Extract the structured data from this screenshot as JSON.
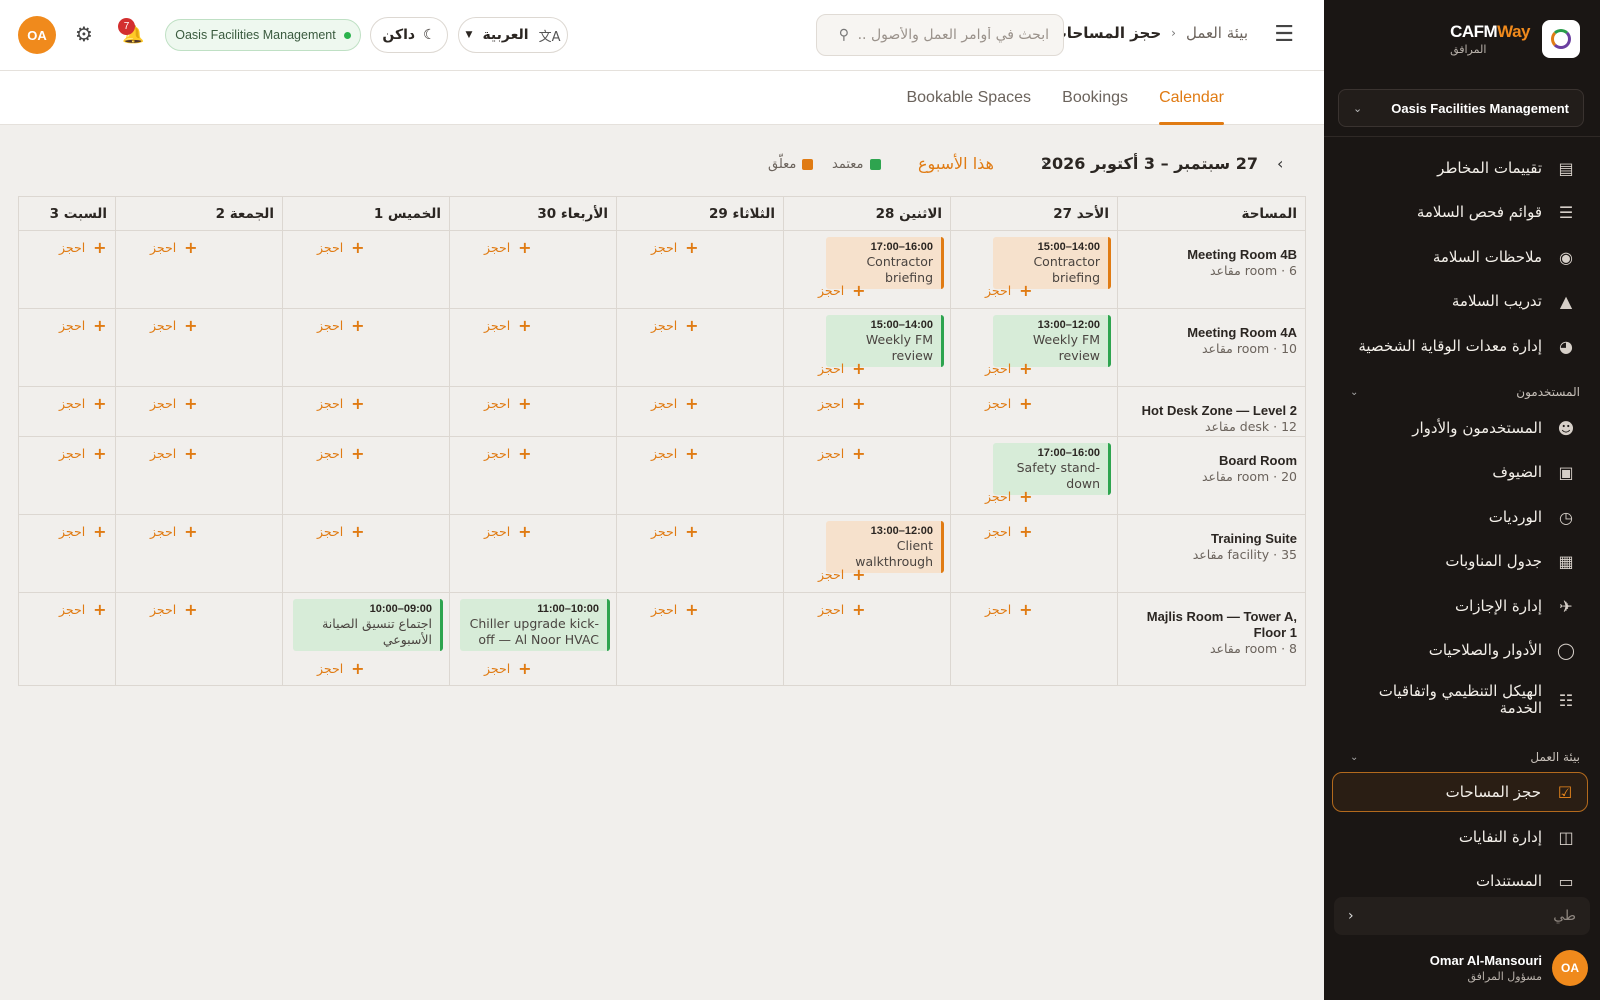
{
  "sidebar": {
    "brand": {
      "name_a": "CAFM",
      "name_b": "Way",
      "subtitle": "المرافق"
    },
    "org": {
      "label": "Oasis Facilities Management"
    },
    "items": [
      {
        "label": "تقييمات المخاطر",
        "icon": "risk-icon"
      },
      {
        "label": "قوائم فحص السلامة",
        "icon": "checklist-icon"
      },
      {
        "label": "ملاحظات السلامة",
        "icon": "eye-icon"
      },
      {
        "label": "تدريب السلامة",
        "icon": "graduation-cap-icon"
      },
      {
        "label": "إدارة معدات الوقاية الشخصية",
        "icon": "mask-icon"
      }
    ],
    "section_users": {
      "label": "المستخدمون"
    },
    "user_items": [
      {
        "label": "المستخدمون والأدوار",
        "icon": "users-icon"
      },
      {
        "label": "الضيوف",
        "icon": "guest-icon"
      },
      {
        "label": "الورديات",
        "icon": "clock-icon"
      },
      {
        "label": "جدول المناوبات",
        "icon": "calendar-icon"
      },
      {
        "label": "إدارة الإجازات",
        "icon": "plane-icon"
      },
      {
        "label": "الأدوار والصلاحيات",
        "icon": "shield-icon"
      },
      {
        "label": "الهيكل التنظيمي واتفاقيات الخدمة",
        "icon": "org-chart-icon"
      }
    ],
    "section_work": {
      "label": "بيئة العمل"
    },
    "work_items": [
      {
        "label": "حجز المساحات",
        "icon": "calendar-check-icon",
        "active": true
      },
      {
        "label": "إدارة النفايات",
        "icon": "trash-icon"
      },
      {
        "label": "المستندات",
        "icon": "folder-icon"
      }
    ],
    "collapse": {
      "label": "طي"
    },
    "user": {
      "initials": "OA",
      "name": "Omar Al-Mansouri",
      "role": "مسؤول المرافق"
    }
  },
  "header": {
    "breadcrumb_root": "بيئة العمل",
    "breadcrumb_current": "حجز المساحات",
    "search_placeholder": "ابحث في أوامر العمل والأصول ...",
    "language": "العربية",
    "theme": "داكن",
    "org_pill": "Oasis Facilities Management",
    "notifications": "7",
    "avatar": "OA"
  },
  "tabs": [
    {
      "label": "Calendar",
      "active": true
    },
    {
      "label": "Bookings",
      "active": false
    },
    {
      "label": "Bookable Spaces",
      "active": false
    }
  ],
  "toolbar": {
    "week_range": "27 سبتمبر – 3 أكتوبر 2026",
    "this_week": "هذا الأسبوع",
    "legend_approved": "معتمد",
    "legend_pending": "معلّق",
    "color_approved": "#2ea44f",
    "color_pending": "#e07b13"
  },
  "grid": {
    "columns": [
      "المساحة",
      "الأحد 27",
      "الاثنين 28",
      "الثلاثاء 29",
      "الأربعاء 30",
      "الخميس 1",
      "الجمعة 2",
      "السبت 3"
    ],
    "book_label": "احجز",
    "rows": [
      {
        "name": "Meeting Room 4B",
        "meta": "6 · room مقاعد",
        "bookings": [
          {
            "day": 0,
            "time": "14:00–15:00",
            "title": "Contractor briefing",
            "status": "pending"
          },
          {
            "day": 1,
            "time": "16:00–17:00",
            "title": "Contractor briefing",
            "status": "pending"
          }
        ]
      },
      {
        "name": "Meeting Room 4A",
        "meta": "10 · room مقاعد",
        "bookings": [
          {
            "day": 0,
            "time": "12:00–13:00",
            "title": "Weekly FM review",
            "status": "approved"
          },
          {
            "day": 1,
            "time": "14:00–15:00",
            "title": "Weekly FM review",
            "status": "approved"
          }
        ]
      },
      {
        "name": "Hot Desk Zone — Level 2",
        "meta": "12 · desk مقاعد",
        "bookings": []
      },
      {
        "name": "Board Room",
        "meta": "20 · room مقاعد",
        "bookings": [
          {
            "day": 0,
            "time": "16:00–17:00",
            "title": "Safety stand-down",
            "status": "approved"
          }
        ]
      },
      {
        "name": "Training Suite",
        "meta": "35 · facility مقاعد",
        "bookings": [
          {
            "day": 1,
            "time": "12:00–13:00",
            "title": "Client walkthrough",
            "status": "pending"
          }
        ]
      },
      {
        "name": "Majlis Room — Tower A, Floor 1",
        "meta": "8 · room مقاعد",
        "bookings": [
          {
            "day": 3,
            "time": "10:00–11:00",
            "title": "Chiller upgrade kick-off — Al Noor HVAC",
            "status": "approved"
          },
          {
            "day": 4,
            "time": "09:00–10:00",
            "title": "اجتماع تنسيق الصيانة الأسبوعي",
            "status": "approved"
          }
        ]
      }
    ]
  }
}
